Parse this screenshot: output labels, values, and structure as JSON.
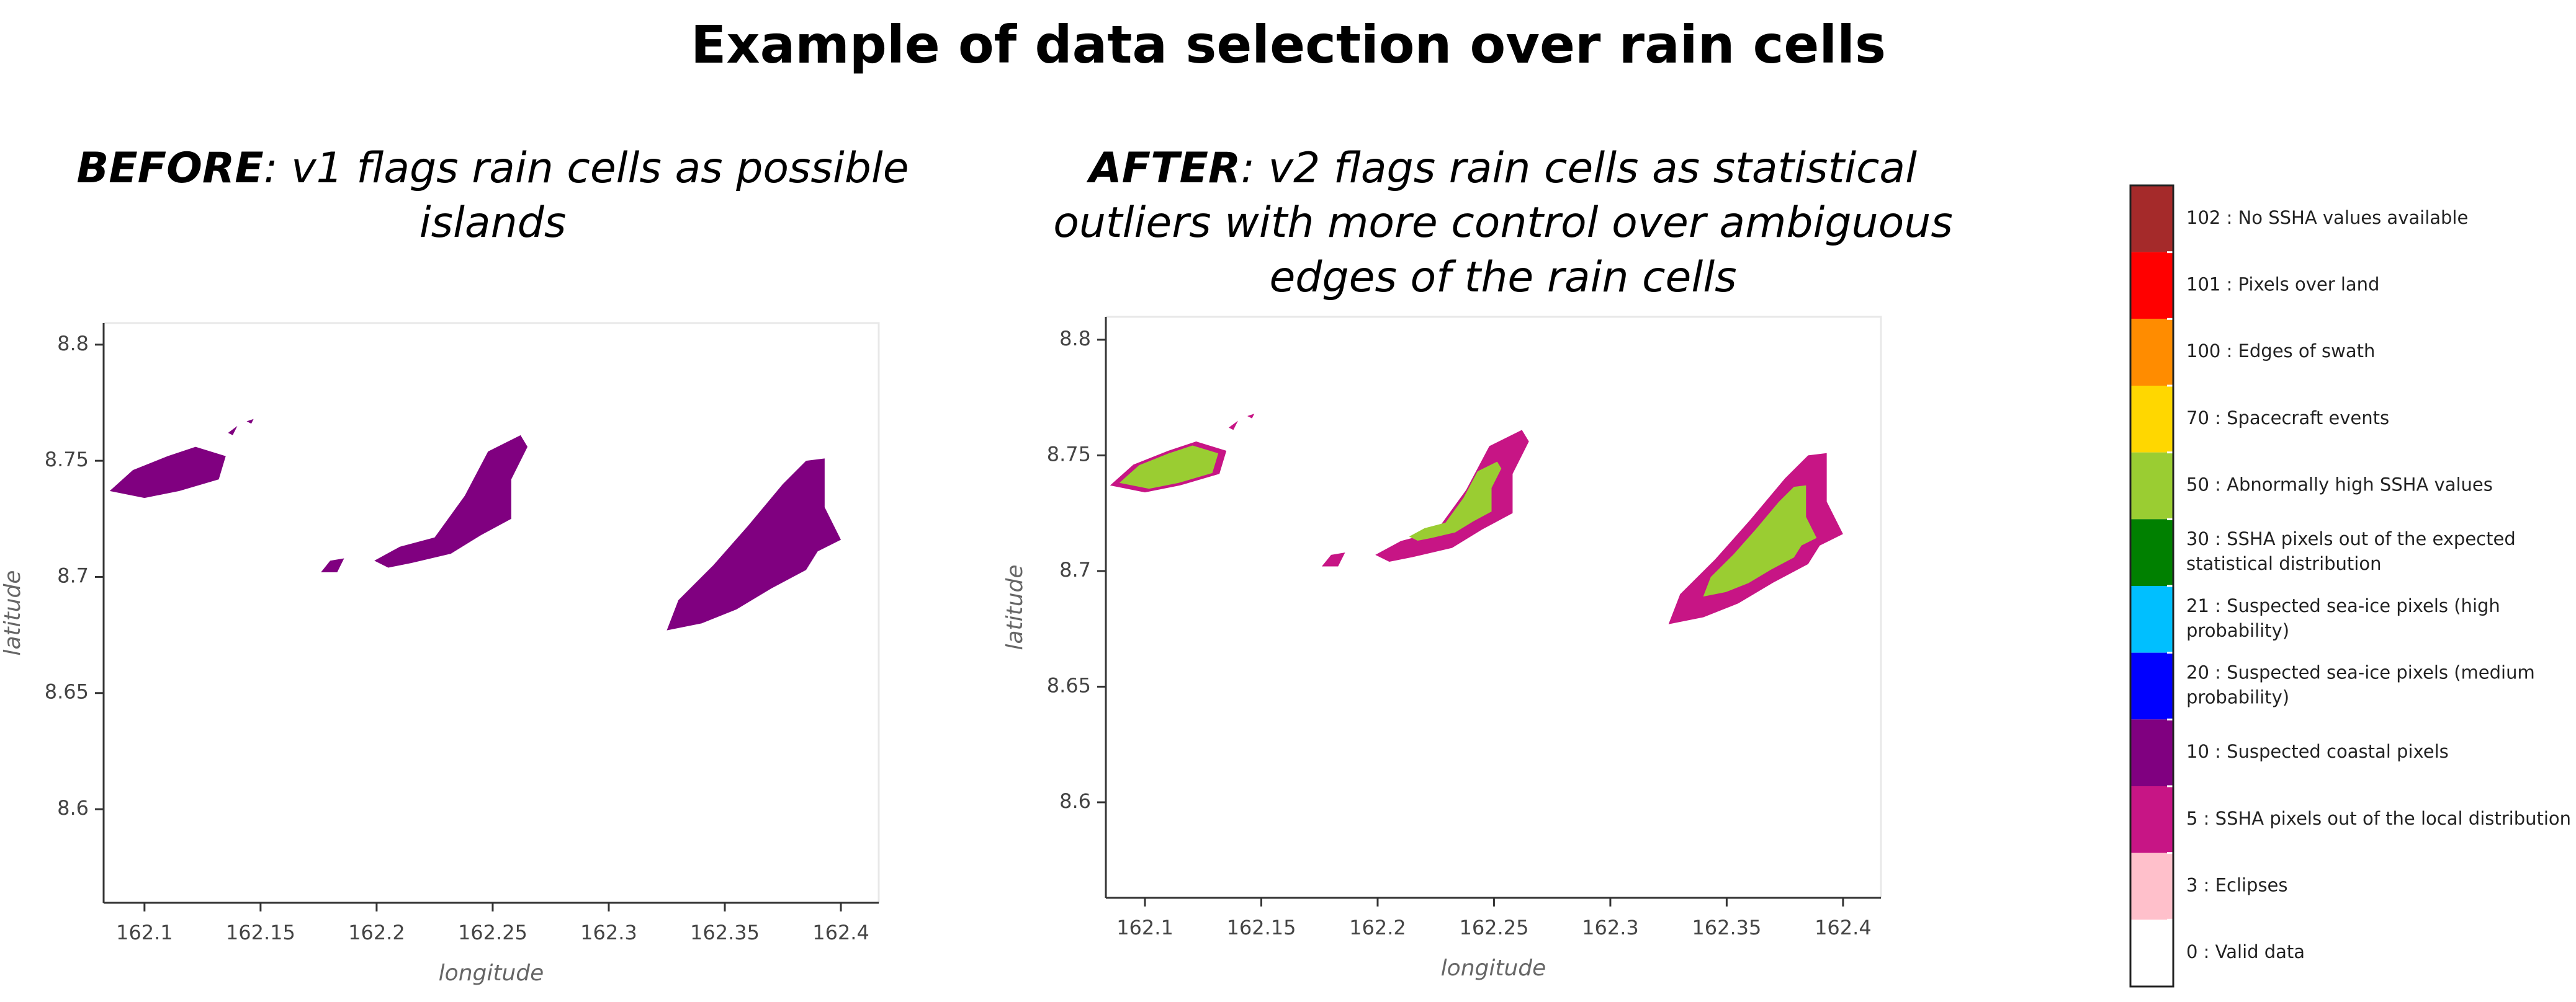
{
  "title": "Example of data selection over rain cells",
  "chart_data": [
    {
      "type": "map",
      "title_bold": "BEFORE",
      "title_lines": [
        ": v1 flags rain cells as possible",
        "islands"
      ],
      "xlabel": "longitude",
      "ylabel": "latitude",
      "xlim": [
        162.0824,
        162.4163
      ],
      "ylim": [
        8.5597,
        8.8093
      ],
      "xticks": [
        162.1,
        162.15,
        162.2,
        162.25,
        162.3,
        162.35,
        162.4
      ],
      "yticks": [
        8.6,
        8.65,
        8.7,
        8.75,
        8.8
      ],
      "colors": [
        "#800080"
      ]
    },
    {
      "type": "map",
      "title_bold": "AFTER",
      "title_lines": [
        ": v2 flags rain cells as statistical",
        "outliers with more control over ambiguous",
        "edges of the rain cells"
      ],
      "xlabel": "longitude",
      "ylabel": "latitude",
      "xlim": [
        162.0832,
        162.4163
      ],
      "ylim": [
        8.5587,
        8.8099
      ],
      "xticks": [
        162.1,
        162.15,
        162.2,
        162.25,
        162.3,
        162.35,
        162.4
      ],
      "yticks": [
        8.6,
        8.65,
        8.7,
        8.75,
        8.8
      ],
      "colors": [
        "#c71585",
        "#9acd32"
      ]
    }
  ],
  "legend": {
    "entries": [
      {
        "lines": [
          "102 : No SSHA values available"
        ],
        "color": "#a52a2a"
      },
      {
        "lines": [
          "101 : Pixels over land"
        ],
        "color": "#ff0000"
      },
      {
        "lines": [
          "100 : Edges of swath"
        ],
        "color": "#ff8c00"
      },
      {
        "lines": [
          "70 : Spacecraft events"
        ],
        "color": "#ffd700"
      },
      {
        "lines": [
          "50 : Abnormally high SSHA values"
        ],
        "color": "#9acd32"
      },
      {
        "lines": [
          "30 : SSHA pixels out of the expected",
          "statistical distribution"
        ],
        "color": "#008000"
      },
      {
        "lines": [
          "21 : Suspected sea-ice pixels (high",
          "probability)"
        ],
        "color": "#00bfff"
      },
      {
        "lines": [
          "20 : Suspected sea-ice pixels (medium",
          "probability)"
        ],
        "color": "#0000ff"
      },
      {
        "lines": [
          "10 : Suspected coastal pixels"
        ],
        "color": "#800080"
      },
      {
        "lines": [
          "5 : SSHA pixels out of the local distribution"
        ],
        "color": "#c71585"
      },
      {
        "lines": [
          "3 : Eclipses"
        ],
        "color": "#ffc0cb"
      },
      {
        "lines": [
          "0 : Valid data"
        ],
        "color": "#ffffff"
      }
    ]
  }
}
